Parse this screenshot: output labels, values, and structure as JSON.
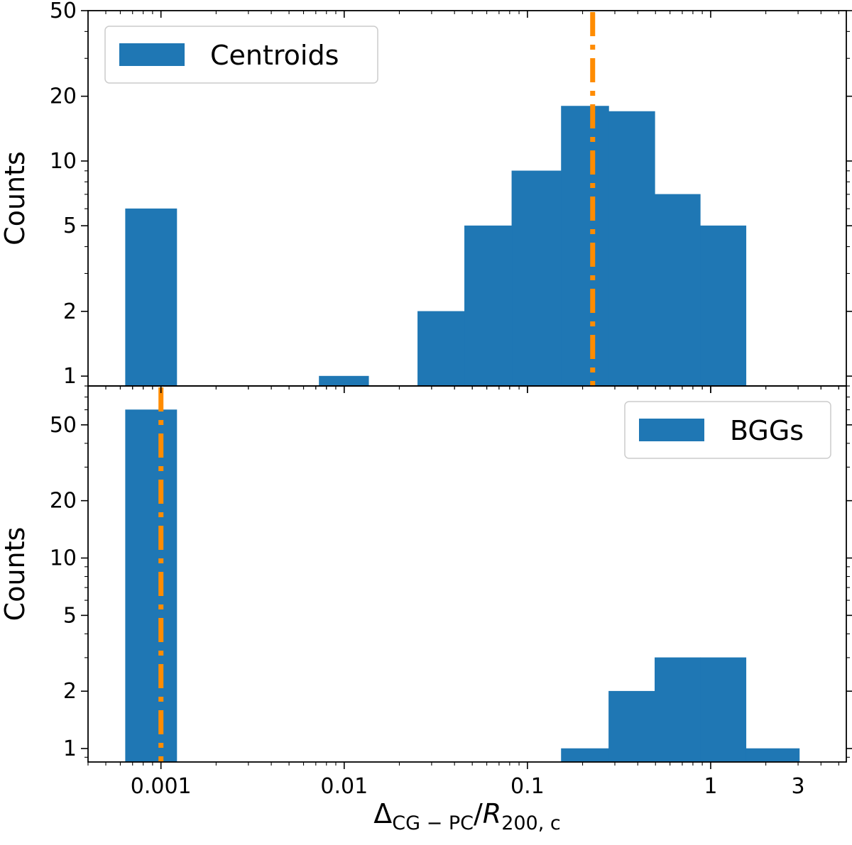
{
  "chart_data": [
    {
      "type": "bar",
      "panel": "top",
      "title": "",
      "xscale": "log",
      "yscale": "log",
      "xlim": [
        0.0004,
        5.5
      ],
      "ylim": [
        0.9,
        50
      ],
      "ylabel": "Counts",
      "ytick_values": [
        1,
        2,
        5,
        10,
        20,
        50
      ],
      "ytick_labels": [
        "1",
        "2",
        "5",
        "10",
        "20",
        "50"
      ],
      "bins": [
        {
          "x0": 0.00064,
          "x1": 0.00122,
          "count": 6
        },
        {
          "x0": 0.0073,
          "x1": 0.0136,
          "count": 1
        },
        {
          "x0": 0.0252,
          "x1": 0.0454,
          "count": 2
        },
        {
          "x0": 0.0454,
          "x1": 0.0822,
          "count": 5
        },
        {
          "x0": 0.0822,
          "x1": 0.153,
          "count": 9
        },
        {
          "x0": 0.153,
          "x1": 0.278,
          "count": 18
        },
        {
          "x0": 0.278,
          "x1": 0.496,
          "count": 17
        },
        {
          "x0": 0.496,
          "x1": 0.878,
          "count": 7
        },
        {
          "x0": 0.878,
          "x1": 1.56,
          "count": 5
        }
      ],
      "vline": {
        "x": 0.227,
        "color": "#ff8c00",
        "style": "dash-dot"
      },
      "legend": {
        "label": "Centroids",
        "position": "top-left"
      },
      "bar_color": "#1f77b4",
      "show_xticklabels": false
    },
    {
      "type": "bar",
      "panel": "bottom",
      "title": "",
      "xscale": "log",
      "yscale": "log",
      "xlim": [
        0.0004,
        5.5
      ],
      "ylim": [
        0.85,
        80
      ],
      "xlabel": "Δ_{CG − PC}/R_{200, c}",
      "ylabel": "Counts",
      "ytick_values": [
        1,
        2,
        5,
        10,
        20,
        50
      ],
      "ytick_labels": [
        "1",
        "2",
        "5",
        "10",
        "20",
        "50"
      ],
      "xtick_values": [
        0.001,
        0.01,
        0.1,
        1,
        3
      ],
      "xtick_labels": [
        "0.001",
        "0.01",
        "0.1",
        "1",
        "3"
      ],
      "bins": [
        {
          "x0": 0.00064,
          "x1": 0.00122,
          "count": 60
        },
        {
          "x0": 0.153,
          "x1": 0.278,
          "count": 1
        },
        {
          "x0": 0.278,
          "x1": 0.496,
          "count": 2
        },
        {
          "x0": 0.496,
          "x1": 0.878,
          "count": 3
        },
        {
          "x0": 0.878,
          "x1": 1.56,
          "count": 3
        },
        {
          "x0": 1.56,
          "x1": 3.05,
          "count": 1
        }
      ],
      "vline": {
        "x": 0.001,
        "color": "#ff8c00",
        "style": "dash-dot"
      },
      "legend": {
        "label": "BGGs",
        "position": "top-right"
      },
      "bar_color": "#1f77b4",
      "show_xticklabels": true
    }
  ]
}
